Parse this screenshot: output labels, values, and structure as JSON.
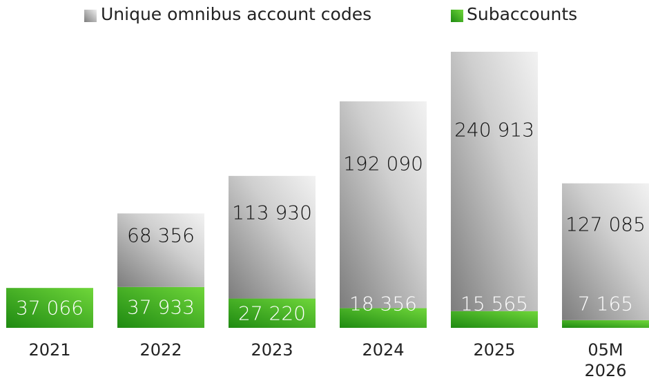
{
  "chart_data": {
    "type": "stacked_bar",
    "categories": [
      "2021",
      "2022",
      "2023",
      "2024",
      "2025",
      "05M 2026"
    ],
    "series": [
      {
        "name": "Subaccounts",
        "color": "#3aa61e",
        "values": [
          37066,
          37933,
          27220,
          18356,
          15565,
          7165
        ],
        "value_labels": [
          "37 066",
          "37 933",
          "27 220",
          "18 356",
          "15 565",
          "7 165"
        ]
      },
      {
        "name": "Unique omnibus account codes",
        "color": "#a9a9a9",
        "values": [
          null,
          68356,
          113930,
          192090,
          240913,
          127085
        ],
        "value_labels": [
          null,
          "68 356",
          "113 930",
          "192 090",
          "240 913",
          "127 085"
        ]
      }
    ],
    "legend": "top"
  }
}
